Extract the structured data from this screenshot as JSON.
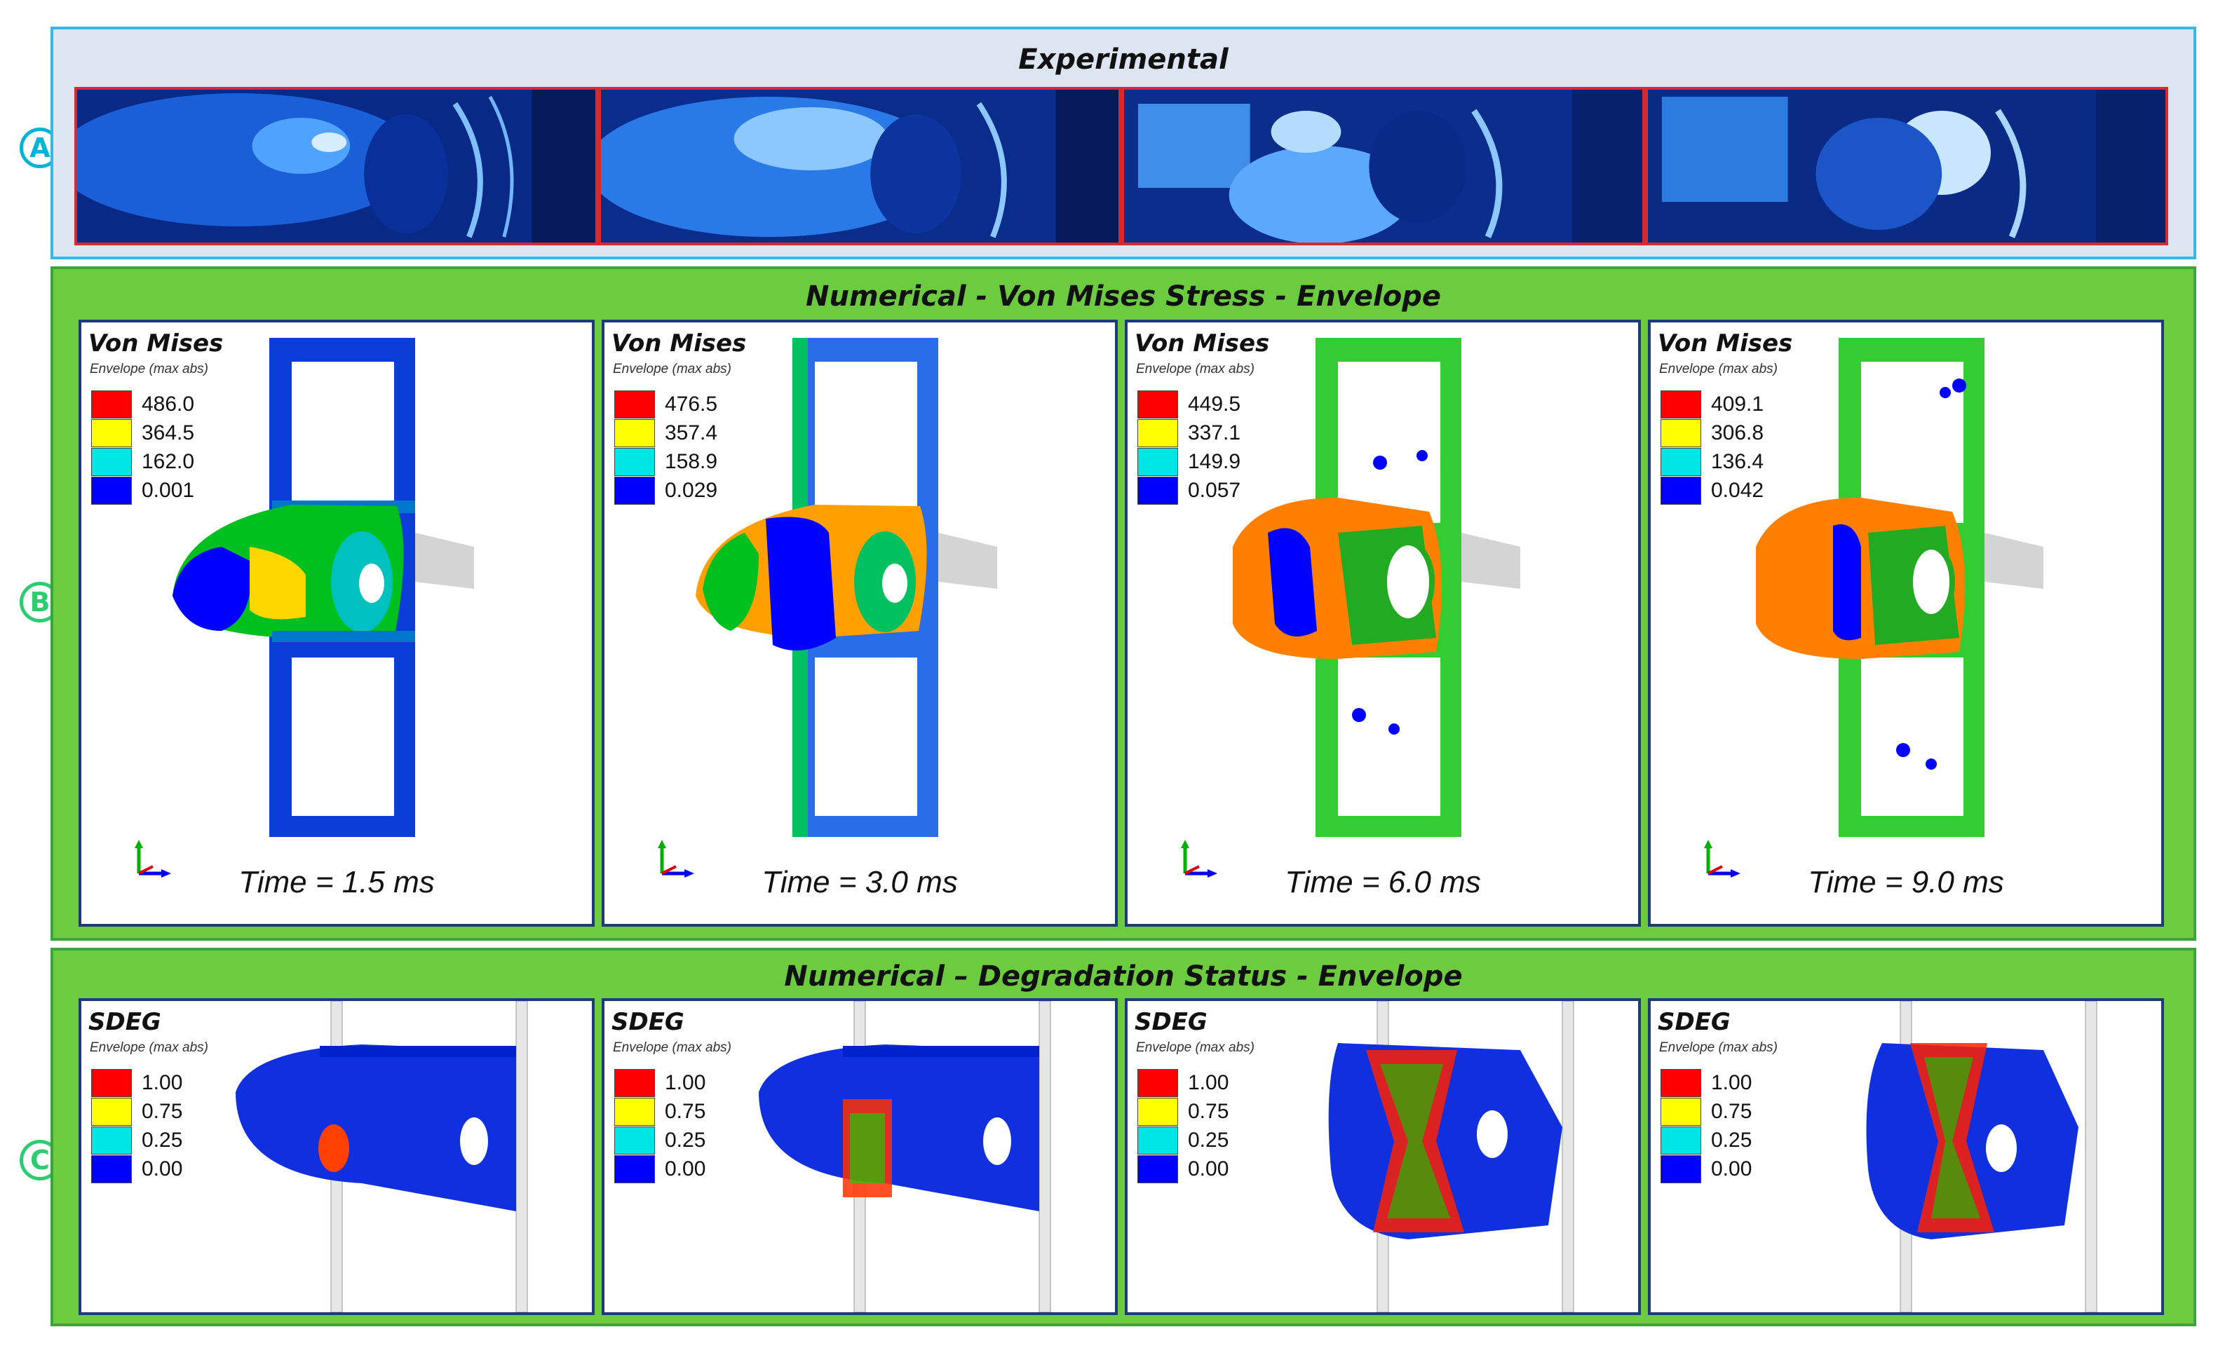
{
  "row_labels": [
    "A",
    "B",
    "C"
  ],
  "sections": {
    "experimental": {
      "title": "Experimental"
    },
    "stress": {
      "title": "Numerical - Von Mises Stress - Envelope",
      "legend_title": "Von Mises",
      "legend_sub": "Envelope (max abs)",
      "panels": [
        {
          "values": [
            "486.0",
            "364.5",
            "162.0",
            "0.001"
          ],
          "time": "Time = 1.5 ms"
        },
        {
          "values": [
            "476.5",
            "357.4",
            "158.9",
            "0.029"
          ],
          "time": "Time = 3.0 ms"
        },
        {
          "values": [
            "449.5",
            "337.1",
            "149.9",
            "0.057"
          ],
          "time": "Time = 6.0 ms"
        },
        {
          "values": [
            "409.1",
            "306.8",
            "136.4",
            "0.042"
          ],
          "time": "Time = 9.0 ms"
        }
      ]
    },
    "degradation": {
      "title": "Numerical – Degradation Status - Envelope",
      "legend_title": "SDEG",
      "legend_sub": "Envelope (max abs)",
      "values": [
        "1.00",
        "0.75",
        "0.25",
        "0.00"
      ]
    }
  },
  "legend_colors": [
    "#ff0000",
    "#ffff00",
    "#00e5e5",
    "#0000ff"
  ]
}
